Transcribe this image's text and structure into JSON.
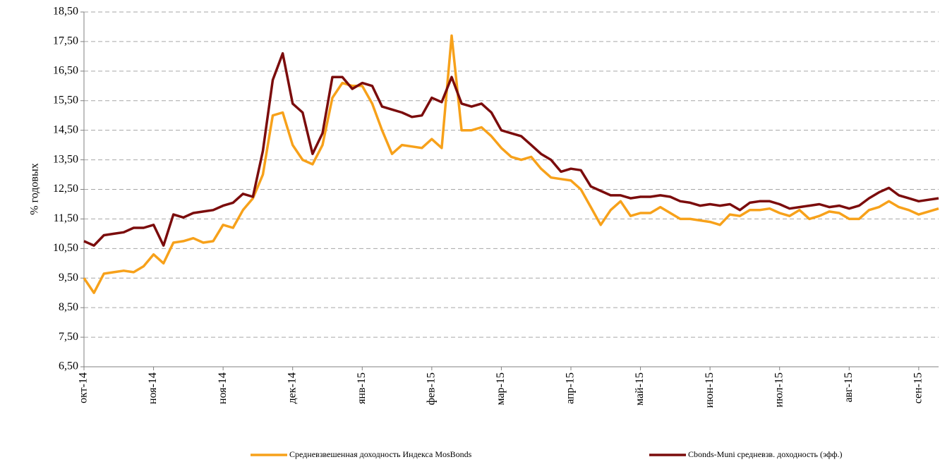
{
  "chart_data": {
    "type": "line",
    "y_label": "% годовых",
    "categories": [
      "окт-14",
      null,
      null,
      null,
      null,
      null,
      null,
      "ноя-14",
      null,
      null,
      null,
      null,
      null,
      null,
      "ноя-14",
      null,
      null,
      null,
      null,
      null,
      null,
      "дек-14",
      null,
      null,
      null,
      null,
      null,
      null,
      "янв-15",
      null,
      null,
      null,
      null,
      null,
      null,
      "фев-15",
      null,
      null,
      null,
      null,
      null,
      null,
      "мар-15",
      null,
      null,
      null,
      null,
      null,
      null,
      "апр-15",
      null,
      null,
      null,
      null,
      null,
      null,
      "май-15",
      null,
      null,
      null,
      null,
      null,
      null,
      "июн-15",
      null,
      null,
      null,
      null,
      null,
      null,
      "июл-15",
      null,
      null,
      null,
      null,
      null,
      null,
      "авг-15",
      null,
      null,
      null,
      null,
      null,
      null,
      "сен-15",
      null,
      null
    ],
    "series": [
      {
        "name": "Средневзвешенная доходность Индекса MosBonds",
        "color": "#f7a11a",
        "values": [
          9.5,
          9.0,
          9.65,
          9.7,
          9.75,
          9.7,
          9.9,
          10.3,
          10.0,
          10.7,
          10.75,
          10.85,
          10.7,
          10.75,
          11.3,
          11.2,
          11.8,
          12.2,
          13.0,
          15.0,
          15.1,
          14.0,
          13.5,
          13.35,
          14.0,
          15.6,
          16.1,
          16.0,
          16.0,
          15.4,
          14.5,
          13.7,
          14.0,
          13.95,
          13.9,
          14.2,
          13.9,
          17.7,
          14.5,
          14.5,
          14.6,
          14.3,
          13.9,
          13.6,
          13.5,
          13.6,
          13.2,
          12.9,
          12.85,
          12.8,
          12.5,
          11.9,
          11.3,
          11.8,
          12.1,
          11.6,
          11.7,
          11.7,
          11.9,
          11.7,
          11.5,
          11.5,
          11.45,
          11.4,
          11.3,
          11.65,
          11.6,
          11.8,
          11.8,
          11.85,
          11.7,
          11.6,
          11.8,
          11.5,
          11.6,
          11.75,
          11.7,
          11.5,
          11.5,
          11.8,
          11.9,
          12.1,
          11.9,
          11.8,
          11.65,
          11.75,
          11.85
        ]
      },
      {
        "name": "Cbonds-Muni средневзв. доходность (эфф.)",
        "color": "#7b0c0c",
        "values": [
          10.75,
          10.6,
          10.95,
          11.0,
          11.05,
          11.2,
          11.2,
          11.3,
          10.6,
          11.65,
          11.55,
          11.7,
          11.75,
          11.8,
          11.95,
          12.05,
          12.35,
          12.25,
          13.8,
          16.2,
          17.1,
          15.4,
          15.1,
          13.7,
          14.4,
          16.3,
          16.3,
          15.9,
          16.1,
          16.0,
          15.3,
          15.2,
          15.1,
          14.95,
          15.0,
          15.6,
          15.45,
          16.3,
          15.4,
          15.3,
          15.4,
          15.1,
          14.5,
          14.4,
          14.3,
          14.0,
          13.7,
          13.5,
          13.1,
          13.2,
          13.15,
          12.6,
          12.45,
          12.3,
          12.3,
          12.2,
          12.25,
          12.25,
          12.3,
          12.25,
          12.1,
          12.05,
          11.95,
          12.0,
          11.95,
          12.0,
          11.8,
          12.05,
          12.1,
          12.1,
          12.0,
          11.85,
          11.9,
          11.95,
          12.0,
          11.9,
          11.95,
          11.85,
          11.95,
          12.2,
          12.4,
          12.55,
          12.3,
          12.2,
          12.1,
          12.15,
          12.2
        ]
      }
    ],
    "ylim": [
      6.5,
      18.5
    ],
    "yticks": [
      {
        "value": 6.5,
        "label": "6,50"
      },
      {
        "value": 7.5,
        "label": "7,50"
      },
      {
        "value": 8.5,
        "label": "8,50"
      },
      {
        "value": 9.5,
        "label": "9,50"
      },
      {
        "value": 10.5,
        "label": "10,50"
      },
      {
        "value": 11.5,
        "label": "11,50"
      },
      {
        "value": 12.5,
        "label": "12,50"
      },
      {
        "value": 13.5,
        "label": "13,50"
      },
      {
        "value": 14.5,
        "label": "14,50"
      },
      {
        "value": 15.5,
        "label": "15,50"
      },
      {
        "value": 16.5,
        "label": "16,50"
      },
      {
        "value": 17.5,
        "label": "17,50"
      },
      {
        "value": 18.5,
        "label": "18,50"
      }
    ],
    "grid": true,
    "legend": "bottom"
  }
}
